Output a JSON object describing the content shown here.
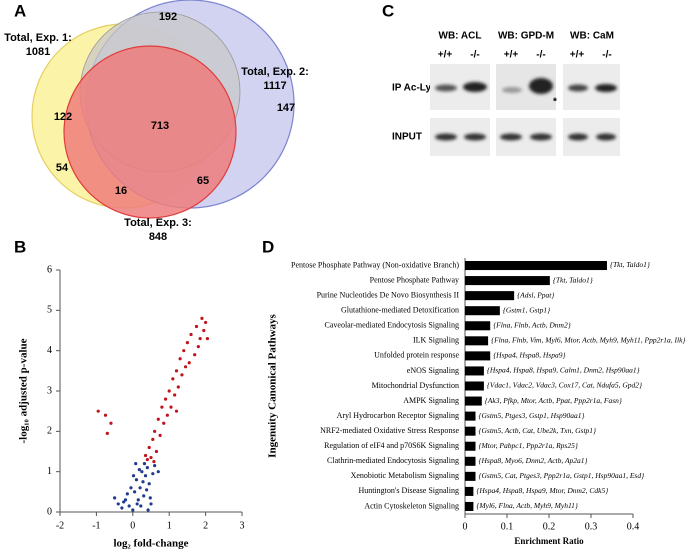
{
  "panel_labels": [
    "A",
    "B",
    "C",
    "D"
  ],
  "venn": {
    "sets": [
      {
        "title": "Total, Exp. 1:",
        "total": 1081
      },
      {
        "title": "Total, Exp. 2:",
        "total": 1117
      },
      {
        "title": "Total, Exp. 3:",
        "total": 848
      }
    ],
    "regions": [
      192,
      122,
      147,
      713,
      54,
      16,
      65
    ]
  },
  "blot": {
    "headers": [
      "WB: ACL",
      "WB: GPD-M",
      "WB: CaM"
    ],
    "genotypes": [
      "+/+",
      "-/-"
    ],
    "rows": [
      "IP Ac-Lys",
      "INPUT"
    ],
    "marker": "*"
  },
  "chart_data": [
    {
      "type": "scatter",
      "xlabel": "log₂ fold-change",
      "ylabel": "-log₁₀ adjusted p-value",
      "xlim": [
        -2,
        3
      ],
      "xticks": [
        -2,
        -1,
        0,
        1,
        2,
        3
      ],
      "ylim": [
        0,
        6
      ],
      "yticks": [
        0,
        1,
        2,
        3,
        4,
        5,
        6
      ],
      "series": [
        {
          "color": "#1f3a8f",
          "x": [
            -0.3,
            -0.2,
            -0.1,
            0,
            0.05,
            0.1,
            0.15,
            0.2,
            0.25,
            0.3,
            0.35,
            0.4,
            0.45,
            0.5,
            -0.05,
            0.08,
            0.18,
            0.28,
            0.38,
            0.55,
            -0.15,
            0.12,
            0.22,
            -0.25,
            0.6,
            0.02,
            0.32,
            -0.4,
            0.48,
            0.7,
            -0.5,
            0.42
          ],
          "y": [
            0.1,
            0.3,
            0.15,
            0.05,
            0.5,
            0.8,
            0.3,
            0.6,
            1.0,
            0.4,
            0.9,
            1.1,
            0.7,
            0.2,
            0.6,
            1.2,
            1.05,
            0.75,
            0.55,
            0.95,
            0.45,
            0.2,
            0.15,
            0.25,
            1.15,
            0.9,
            1.2,
            0.2,
            0.35,
            1.0,
            0.35,
            0.05
          ]
        },
        {
          "color": "#c0141c",
          "x": [
            -0.95,
            -0.75,
            -0.6,
            -0.7,
            0.35,
            0.45,
            0.5,
            0.55,
            0.6,
            0.65,
            0.7,
            0.75,
            0.8,
            0.85,
            0.9,
            0.95,
            1.0,
            1.05,
            1.1,
            1.15,
            1.2,
            1.25,
            1.3,
            1.35,
            1.4,
            1.45,
            1.5,
            1.55,
            1.6,
            1.7,
            1.75,
            1.8,
            1.85,
            1.9,
            1.95,
            2.0,
            2.05,
            0.4,
            0.58,
            1.2
          ],
          "y": [
            2.5,
            2.4,
            2.2,
            1.95,
            1.4,
            1.6,
            1.35,
            1.8,
            2.0,
            1.5,
            2.3,
            1.9,
            2.6,
            2.2,
            2.8,
            2.4,
            3.0,
            2.6,
            3.3,
            2.9,
            3.5,
            3.1,
            3.8,
            3.4,
            4.0,
            3.6,
            4.2,
            3.7,
            4.4,
            3.9,
            4.6,
            4.1,
            4.3,
            4.8,
            4.5,
            4.7,
            4.3,
            1.3,
            1.25,
            2.5
          ]
        }
      ]
    },
    {
      "type": "barh",
      "xlabel": "Enrichment Ratio",
      "ylabel": "Ingenuity Canonical Pathways",
      "color": "#000000",
      "xlim": [
        0,
        0.4
      ],
      "xticks": [
        0,
        0.1,
        0.2,
        0.3,
        0.4
      ],
      "categories": [
        "Pentose Phosphate Pathway (Non-oxidative Branch)",
        "Pentose Phosphate Pathway",
        "Purine Nucleotides De Novo Biosynthesis II",
        "Glutathione-mediated Detoxification",
        "Caveolar-mediated Endocytosis Signaling",
        "ILK Signaling",
        "Unfolded protein response",
        "eNOS Signaling",
        "Mitochondrial Dysfunction",
        "AMPK Signaling",
        "Aryl Hydrocarbon Receptor Signaling",
        "NRF2-mediated Oxidative Stress Response",
        "Regulation of eIF4 and p70S6K Signaling",
        "Clathrin-mediated Endocytosis Signaling",
        "Xenobiotic Metabolism Signaling",
        "Huntington's Disease Signaling",
        "Actin Cytoskeleton Signaling"
      ],
      "values": [
        0.338,
        0.202,
        0.117,
        0.083,
        0.06,
        0.055,
        0.06,
        0.045,
        0.045,
        0.04,
        0.025,
        0.025,
        0.025,
        0.025,
        0.025,
        0.02,
        0.02
      ],
      "annotations": [
        "{Tkt, Taldo1}",
        "{Tkt, Taldo1}",
        "{Adsl, Ppat}",
        "{Gstm1, Gstp1}",
        "{Flna, Flnb, Actb, Dnm2}",
        "{Flna, Flnb, Vim, Myl6, Mtor, Actb, Myh9, Myh11, Ppp2r1a, Ilk}",
        "{Hspa4, Hspa8, Hspa9}",
        "{Hspa4, Hspa8, Hspa9, Calm1, Dnm2, Hsp90aa1}",
        "{Vdac1, Vdac2, Vdac3, Cox17, Cat, Ndufa5, Gpd2}",
        "{Ak3, Pfkp, Mtor, Actb, Ppat, Ppp2r1a, Fasn}",
        "{Gstm5, Ptges3, Gstp1, Hsp90aa1}",
        "{Gstm5, Actb, Cat, Ube2k, Txn, Gstp1}",
        "{Mtor, Pabpc1, Ppp2r1a, Rps25}",
        "{Hspa8, Myo6, Dnm2, Actb, Ap2a1}",
        "{Gstm5, Cat, Ptges3, Ppp2r1a, Gstp1, Hsp90aa1, Esd}",
        "{Hspa4, Hspa8, Hspa9, Mtor, Dnm2, Cdk5}",
        "{Myl6, Flna, Actb, Myh9, Myh11}"
      ]
    }
  ]
}
